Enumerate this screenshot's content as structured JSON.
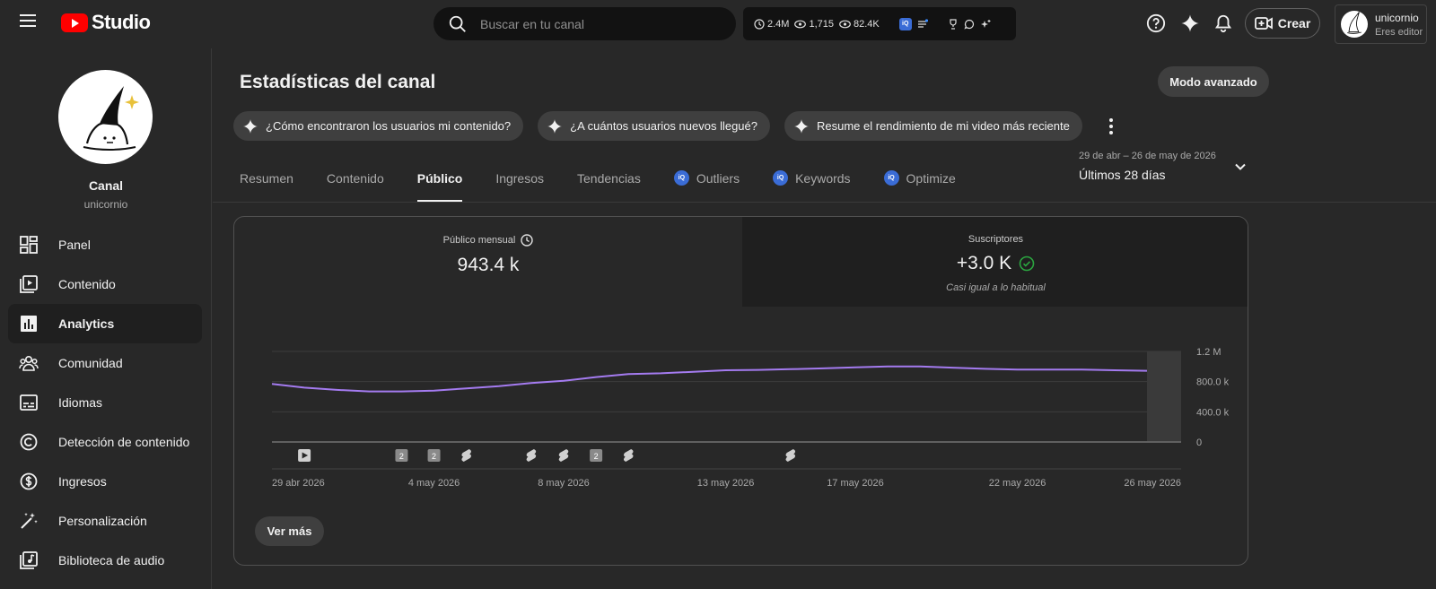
{
  "app": {
    "name": "Studio"
  },
  "search": {
    "placeholder": "Buscar en tu canal"
  },
  "quick_stats": {
    "watch_hours": "2.4M",
    "views_live": "1,715",
    "views_total": "82.4K"
  },
  "header": {
    "create_label": "Crear"
  },
  "account": {
    "name": "unicornio",
    "role": "Eres editor"
  },
  "sidebar": {
    "channel_label": "Canal",
    "channel_handle": "unicornio",
    "items": [
      {
        "label": "Panel",
        "icon": "dashboard-icon"
      },
      {
        "label": "Contenido",
        "icon": "content-icon"
      },
      {
        "label": "Analytics",
        "icon": "analytics-icon",
        "active": true
      },
      {
        "label": "Comunidad",
        "icon": "community-icon"
      },
      {
        "label": "Idiomas",
        "icon": "subtitles-icon"
      },
      {
        "label": "Detección de contenido",
        "icon": "copyright-icon"
      },
      {
        "label": "Ingresos",
        "icon": "monetization-icon"
      },
      {
        "label": "Personalización",
        "icon": "customization-icon"
      },
      {
        "label": "Biblioteca de audio",
        "icon": "audio-library-icon"
      }
    ]
  },
  "main": {
    "title": "Estadísticas del canal",
    "advanced_mode": "Modo avanzado",
    "chips": [
      "¿Cómo encontraron los usuarios mi contenido?",
      "¿A cuántos usuarios nuevos llegué?",
      "Resume el rendimiento de mi video más reciente"
    ],
    "tabs": [
      {
        "label": "Resumen"
      },
      {
        "label": "Contenido"
      },
      {
        "label": "Público",
        "active": true
      },
      {
        "label": "Ingresos"
      },
      {
        "label": "Tendencias"
      },
      {
        "label": "Outliers",
        "badge": "vidiq"
      },
      {
        "label": "Keywords",
        "badge": "vidiq"
      },
      {
        "label": "Optimize",
        "badge": "vidiq"
      }
    ],
    "date_range": {
      "range": "29 de abr – 26 de may de 2026",
      "label": "Últimos 28 días"
    },
    "metrics": {
      "monthly_audience": {
        "label": "Público mensual",
        "value": "943.4 k"
      },
      "subscribers": {
        "label": "Suscriptores",
        "value": "+3.0 K",
        "note": "Casi igual a lo habitual"
      }
    },
    "see_more": "Ver más"
  },
  "chart_data": {
    "type": "line",
    "x_tick_labels": [
      "29 abr 2026",
      "4 may 2026",
      "8 may 2026",
      "13 may 2026",
      "17 may 2026",
      "22 may 2026",
      "26 may 2026"
    ],
    "y_tick_labels": [
      "1.2 M",
      "800.0 k",
      "400.0 k",
      "0"
    ],
    "ylim": [
      0,
      1200000
    ],
    "grid": true,
    "color": "#a47bf0",
    "x": [
      "2026-04-29",
      "2026-04-30",
      "2026-05-01",
      "2026-05-02",
      "2026-05-03",
      "2026-05-04",
      "2026-05-05",
      "2026-05-06",
      "2026-05-07",
      "2026-05-08",
      "2026-05-09",
      "2026-05-10",
      "2026-05-11",
      "2026-05-12",
      "2026-05-13",
      "2026-05-14",
      "2026-05-15",
      "2026-05-16",
      "2026-05-17",
      "2026-05-18",
      "2026-05-19",
      "2026-05-20",
      "2026-05-21",
      "2026-05-22",
      "2026-05-23",
      "2026-05-24",
      "2026-05-25",
      "2026-05-26"
    ],
    "values": [
      770000,
      720000,
      690000,
      670000,
      670000,
      680000,
      710000,
      740000,
      780000,
      810000,
      860000,
      900000,
      910000,
      930000,
      950000,
      955000,
      965000,
      975000,
      990000,
      1000000,
      1000000,
      985000,
      970000,
      960000,
      960000,
      960000,
      950000,
      943400
    ]
  },
  "markers": [
    {
      "date": "2026-04-30",
      "kind": "video"
    },
    {
      "date": "2026-05-03",
      "kind": "count",
      "label": "2"
    },
    {
      "date": "2026-05-04",
      "kind": "count",
      "label": "2"
    },
    {
      "date": "2026-05-05",
      "kind": "short"
    },
    {
      "date": "2026-05-07",
      "kind": "short"
    },
    {
      "date": "2026-05-08",
      "kind": "short"
    },
    {
      "date": "2026-05-09",
      "kind": "count",
      "label": "2"
    },
    {
      "date": "2026-05-10",
      "kind": "short"
    },
    {
      "date": "2026-05-15",
      "kind": "short"
    }
  ]
}
